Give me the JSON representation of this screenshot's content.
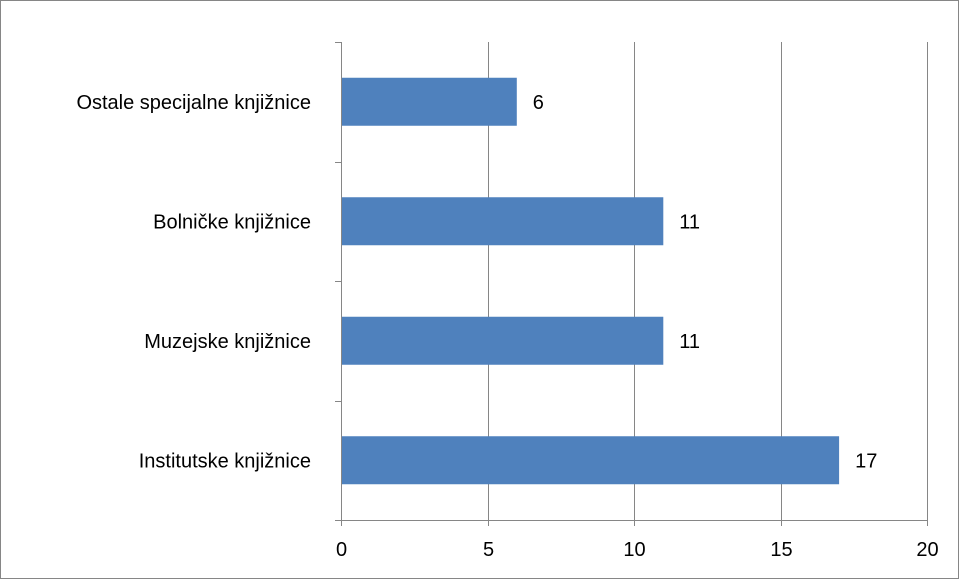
{
  "chart_data": {
    "type": "bar",
    "orientation": "horizontal",
    "categories": [
      "Institutske knjižnice",
      "Muzejske knjižnice",
      "Bolničke knjižnice",
      "Ostale specijalne knjižnice"
    ],
    "values": [
      17,
      11,
      11,
      6
    ],
    "value_labels": [
      "17",
      "11",
      "11",
      "6"
    ],
    "xlim": [
      0,
      20
    ],
    "xticks": [
      0,
      5,
      10,
      15,
      20
    ],
    "xtick_labels": [
      "0",
      "5",
      "10",
      "15",
      "20"
    ],
    "title": "",
    "xlabel": "",
    "ylabel": "",
    "grid": "vertical",
    "legend": "none",
    "colors": {
      "bar": "#4F81BD",
      "grid": "#868686",
      "axis": "#868686",
      "border": "#868686",
      "text": "#000000"
    }
  }
}
